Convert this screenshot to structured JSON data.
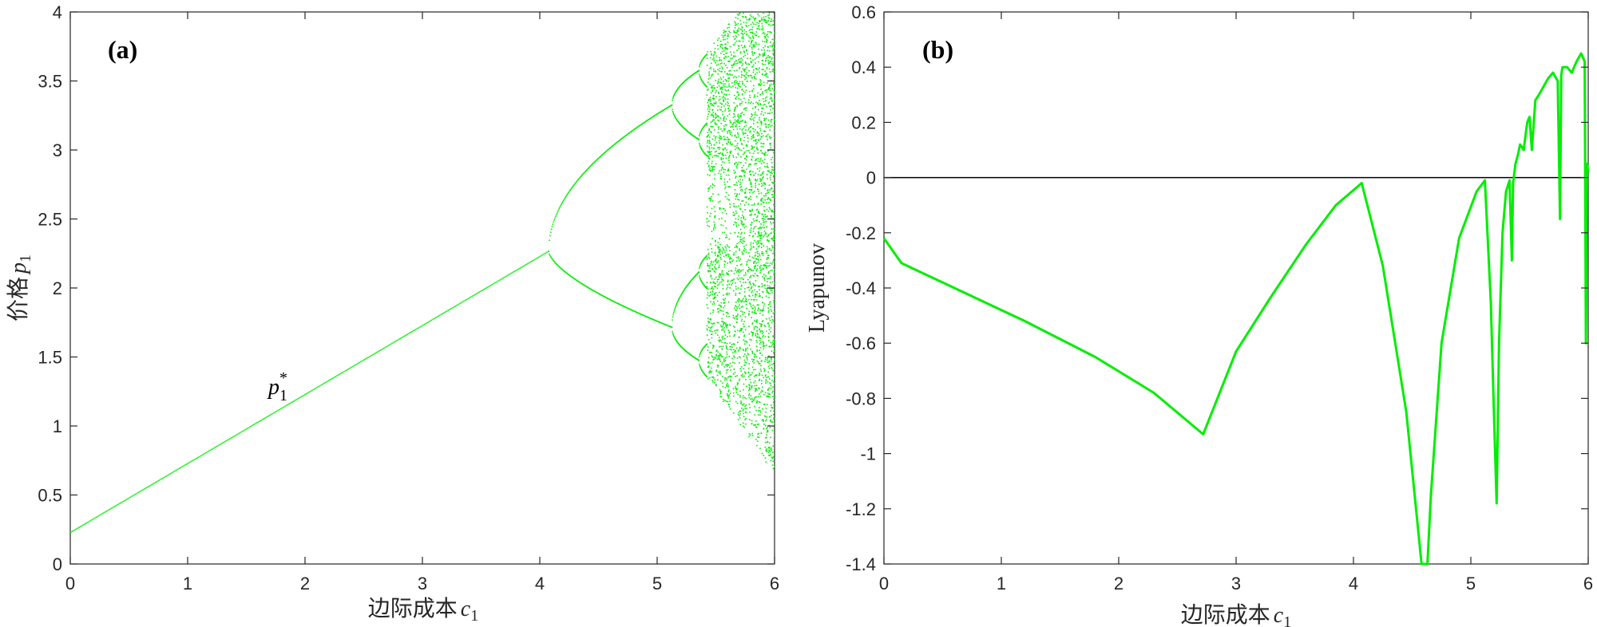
{
  "colors": {
    "series": "#00ee00",
    "axis": "#262626",
    "zero_line": "#000000"
  },
  "chart_data": [
    {
      "type": "scatter",
      "panel_label": "(a)",
      "xlabel": "边际成本",
      "xlabel_var": "c",
      "xlabel_sub": "1",
      "ylabel": "价格",
      "ylabel_var": "p",
      "ylabel_sub": "1",
      "xlim": [
        0,
        6
      ],
      "ylim": [
        0,
        4
      ],
      "xticks": [
        0,
        1,
        2,
        3,
        4,
        5,
        6
      ],
      "xtick_labels": [
        "0",
        "1",
        "2",
        "3",
        "4",
        "5",
        "6"
      ],
      "yticks": [
        0,
        0.5,
        1,
        1.5,
        2,
        2.5,
        3,
        3.5,
        4
      ],
      "ytick_labels": [
        "0",
        "0.5",
        "1",
        "1.5",
        "2",
        "2.5",
        "3",
        "3.5",
        "4"
      ],
      "annotation": {
        "base": "p",
        "sub": "1",
        "sup": "*",
        "x": 1.7,
        "y": 1.2
      },
      "model": {
        "description": "bifurcation diagram: fixed point p* = 0.235 + 0.5 c for c < 4.07, then period-doubling cascade to chaos",
        "fixed_point": {
          "intercept": 0.235,
          "slope": 0.5
        },
        "bifurcation_points": [
          4.07,
          5.12,
          5.35,
          5.42
        ],
        "period2_at_5_1": [
          3.33,
          1.72
        ],
        "chaos_onset": 5.45,
        "chaos_band_at_6": [
          0.65,
          4.0
        ]
      }
    },
    {
      "type": "line",
      "panel_label": "(b)",
      "xlabel": "边际成本",
      "xlabel_var": "c",
      "xlabel_sub": "1",
      "ylabel": "Lyapunov",
      "xlim": [
        0,
        6
      ],
      "ylim": [
        -1.4,
        0.6
      ],
      "xticks": [
        0,
        1,
        2,
        3,
        4,
        5,
        6
      ],
      "xtick_labels": [
        "0",
        "1",
        "2",
        "3",
        "4",
        "5",
        "6"
      ],
      "yticks": [
        -1.4,
        -1.2,
        -1,
        -0.8,
        -0.6,
        -0.4,
        -0.2,
        0,
        0.2,
        0.4,
        0.6
      ],
      "ytick_labels": [
        "-1.4",
        "-1.2",
        "-1",
        "-0.8",
        "-0.6",
        "-0.4",
        "-0.2",
        "0",
        "0.2",
        "0.4",
        "0.6"
      ],
      "reference_line_y": 0,
      "series": [
        {
          "name": "Lyapunov exponent",
          "x": [
            0,
            0.15,
            0.6,
            1.2,
            1.8,
            2.3,
            2.72,
            3.0,
            3.3,
            3.6,
            3.85,
            4.07,
            4.25,
            4.45,
            4.58,
            4.61,
            4.63,
            4.66,
            4.75,
            4.9,
            5.05,
            5.12,
            5.17,
            5.2,
            5.22,
            5.24,
            5.27,
            5.3,
            5.33,
            5.35,
            5.36,
            5.38,
            5.4,
            5.42,
            5.45,
            5.48,
            5.5,
            5.52,
            5.55,
            5.58,
            5.62,
            5.66,
            5.7,
            5.74,
            5.76,
            5.77,
            5.78,
            5.82,
            5.86,
            5.9,
            5.94,
            5.97,
            5.98,
            5.99,
            6.0
          ],
          "y": [
            -0.22,
            -0.31,
            -0.4,
            -0.52,
            -0.65,
            -0.78,
            -0.93,
            -0.63,
            -0.43,
            -0.24,
            -0.1,
            -0.02,
            -0.32,
            -0.85,
            -1.4,
            -1.4,
            -1.4,
            -1.15,
            -0.6,
            -0.22,
            -0.05,
            -0.01,
            -0.45,
            -0.9,
            -1.18,
            -0.6,
            -0.2,
            -0.05,
            -0.01,
            -0.3,
            -0.02,
            0.05,
            0.08,
            0.12,
            0.1,
            0.2,
            0.22,
            0.1,
            0.28,
            0.3,
            0.33,
            0.36,
            0.38,
            0.35,
            -0.15,
            0.37,
            0.4,
            0.4,
            0.38,
            0.42,
            0.45,
            0.42,
            -0.6,
            0.05,
            0.02
          ]
        }
      ]
    }
  ]
}
